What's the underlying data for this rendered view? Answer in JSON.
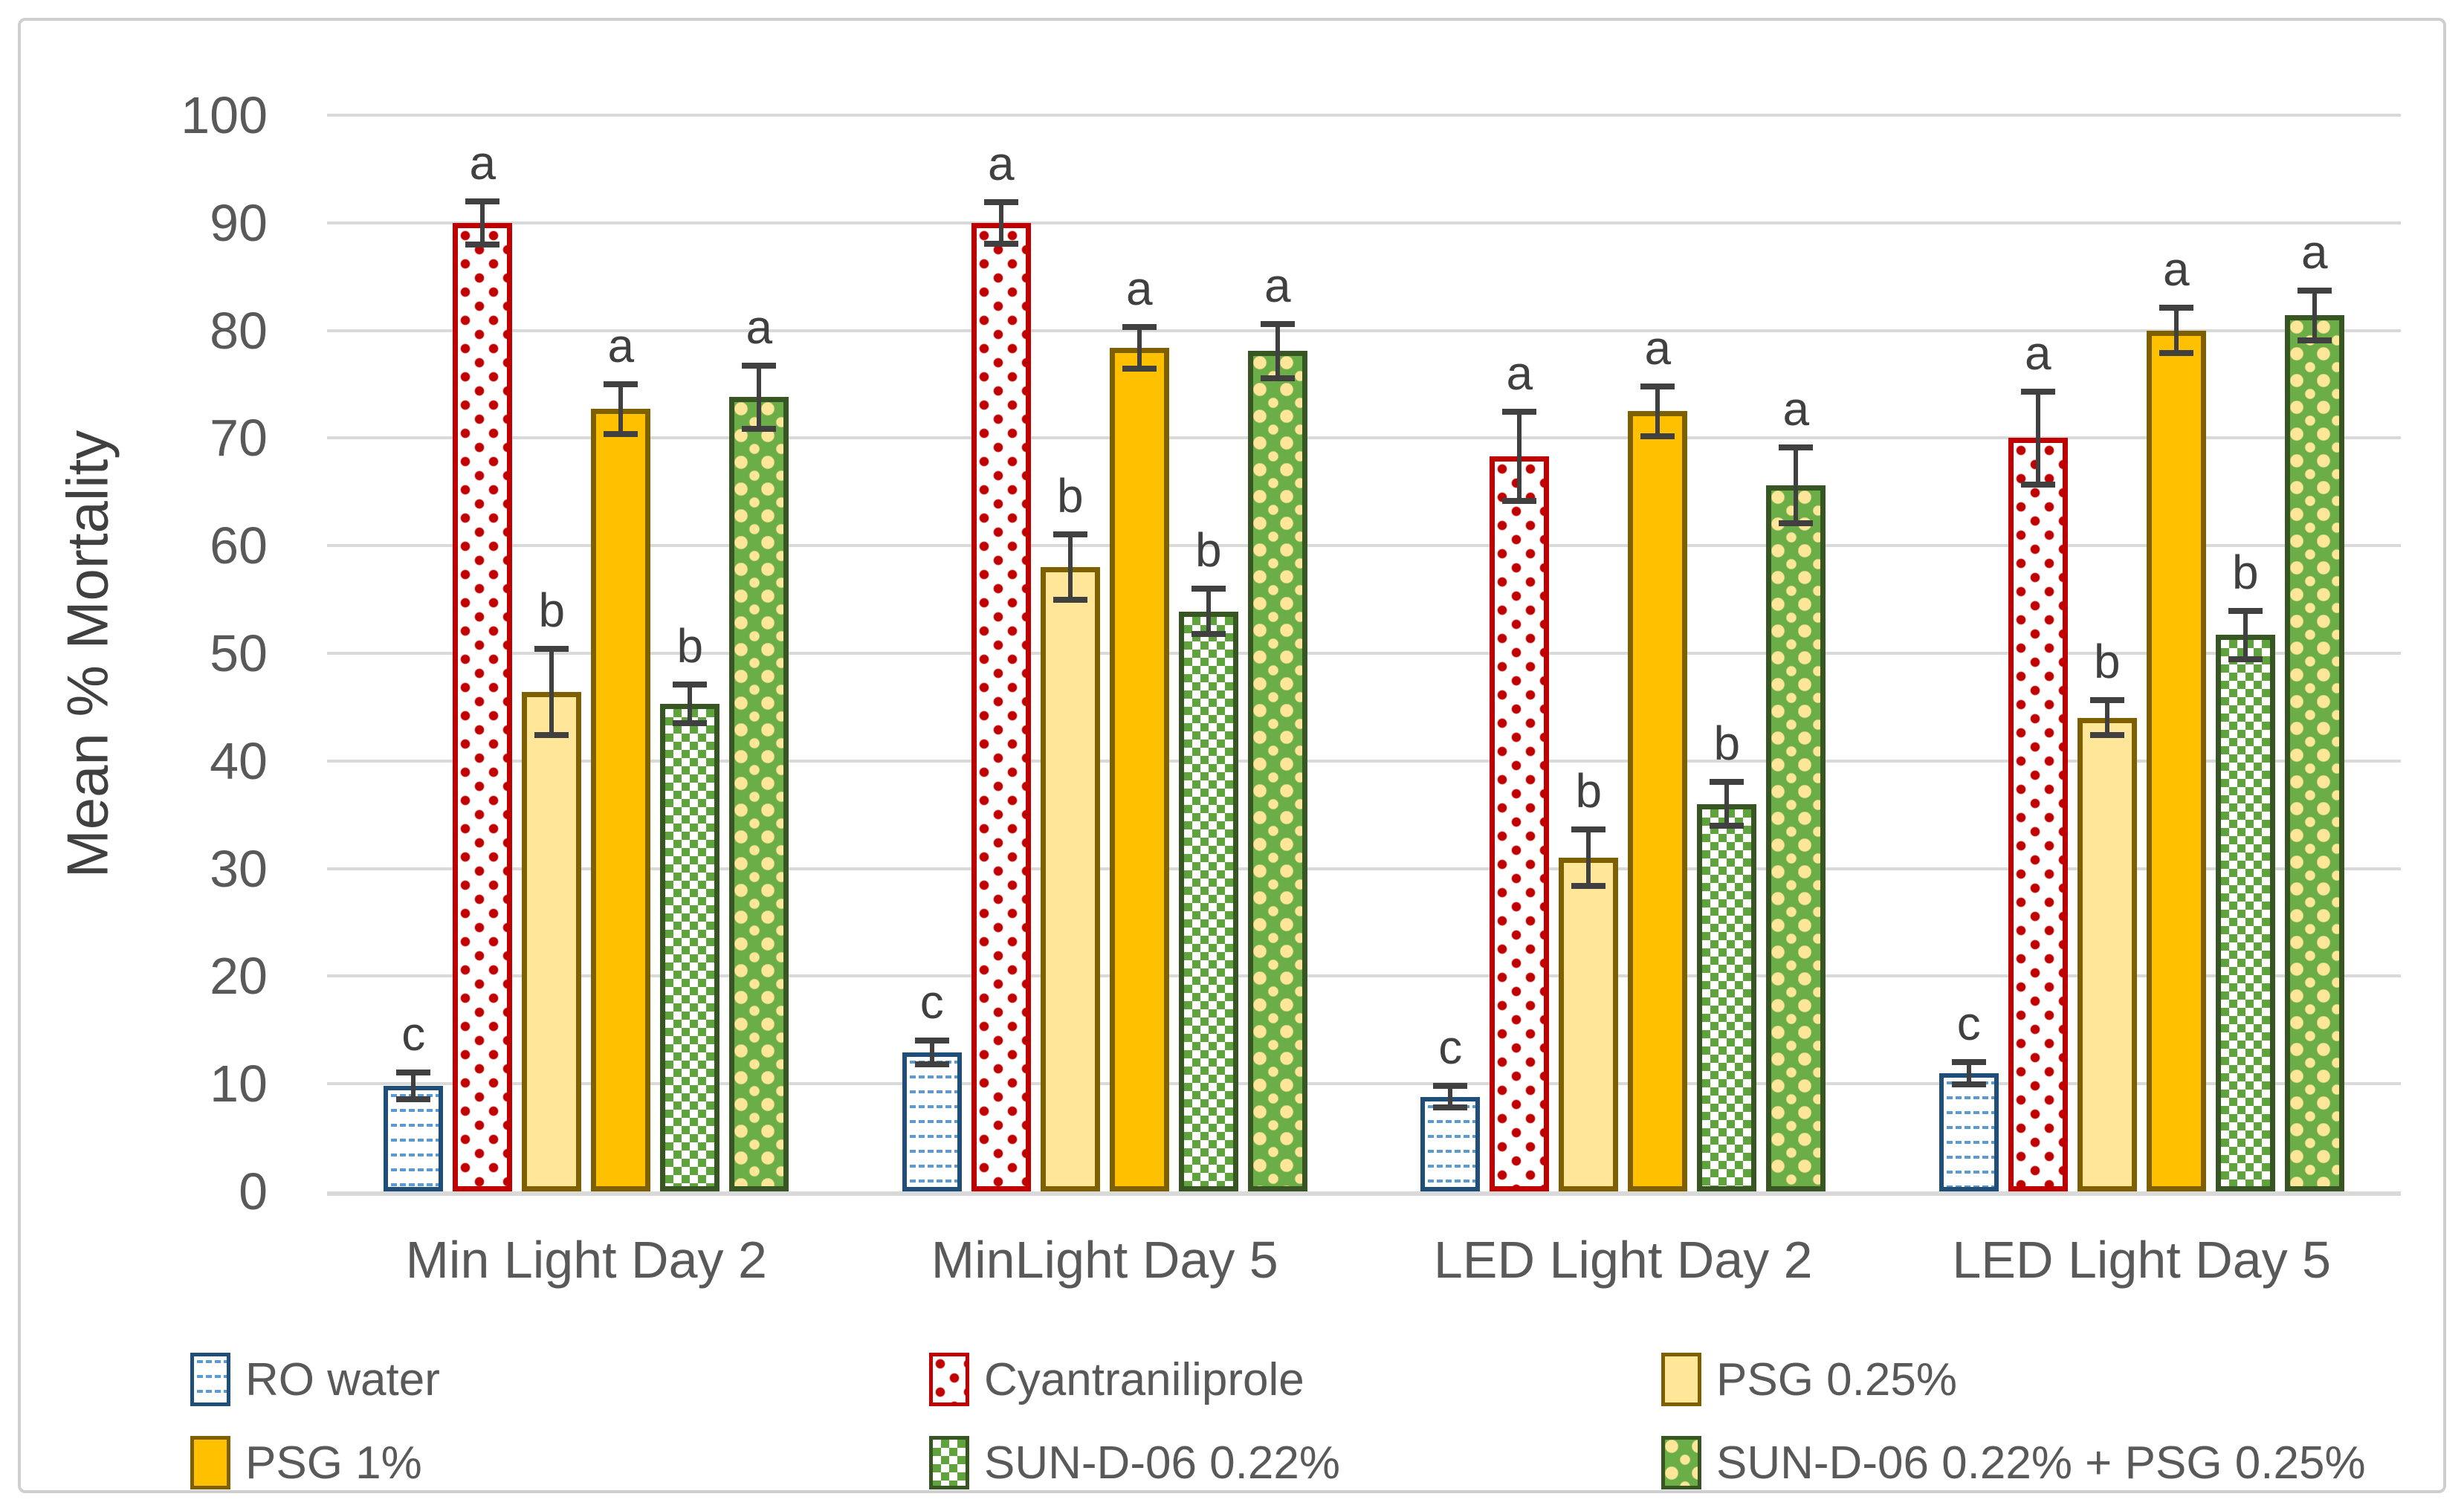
{
  "chart_data": {
    "type": "bar",
    "title": "",
    "xlabel": "",
    "ylabel": "Mean % Mortality",
    "ylim": [
      0,
      100
    ],
    "yticks": [
      0,
      10,
      20,
      30,
      40,
      50,
      60,
      70,
      80,
      90,
      100
    ],
    "grid": true,
    "legend_position": "bottom",
    "categories": [
      "Min Light Day 2",
      "MinLight Day 5",
      "LED Light Day 2",
      "LED Light Day 5"
    ],
    "series": [
      {
        "name": "RO water",
        "pattern": "blue-wave",
        "values": [
          9.8,
          12.9,
          8.8,
          11.0
        ],
        "errors": [
          1.5,
          1.4,
          1.3,
          1.3
        ],
        "letters": [
          "c",
          "c",
          "c",
          "c"
        ]
      },
      {
        "name": "Cyantraniliprole",
        "pattern": "red-trefoil",
        "values": [
          90.0,
          90.0,
          68.3,
          70.0
        ],
        "errors": [
          2.3,
          2.2,
          4.4,
          4.6
        ],
        "letters": [
          "a",
          "a",
          "a",
          "a"
        ]
      },
      {
        "name": "PSG 0.25%",
        "pattern": "yellow-solid",
        "values": [
          46.4,
          58.0,
          31.0,
          44.0
        ],
        "errors": [
          4.3,
          3.3,
          2.9,
          1.9
        ],
        "letters": [
          "b",
          "b",
          "b",
          "b"
        ]
      },
      {
        "name": "PSG 1%",
        "pattern": "orange-solid",
        "values": [
          72.7,
          78.4,
          72.5,
          80.0
        ],
        "errors": [
          2.6,
          2.2,
          2.6,
          2.4
        ],
        "letters": [
          "a",
          "a",
          "a",
          "a"
        ]
      },
      {
        "name": "SUN-D-06 0.22%",
        "pattern": "green-check",
        "values": [
          45.3,
          53.9,
          36.0,
          51.7
        ],
        "errors": [
          2.1,
          2.4,
          2.3,
          2.5
        ],
        "letters": [
          "b",
          "b",
          "b",
          "b"
        ]
      },
      {
        "name": "SUN-D-06 0.22% + PSG 0.25%",
        "pattern": "green-yellow-check",
        "values": [
          73.8,
          78.1,
          65.6,
          81.4
        ],
        "errors": [
          3.2,
          2.8,
          3.8,
          2.6
        ],
        "letters": [
          "a",
          "a",
          "a",
          "a"
        ]
      }
    ]
  },
  "palette": {
    "blue_pattern": "#5B9BD5",
    "blue_border": "#1F4E79",
    "red": "#C00000",
    "pale_yellow": "#FFE699",
    "gold_border": "#7F6000",
    "orange": "#FFC000",
    "green": "#5FA33C",
    "green_border": "#375623",
    "green2_bg": "#6BAE47",
    "grid": "#D9D9D9",
    "axis_line": "#D9D9D9",
    "tick_text": "#595959",
    "annotation": "#404040",
    "frame_border": "#CFCFCF"
  }
}
